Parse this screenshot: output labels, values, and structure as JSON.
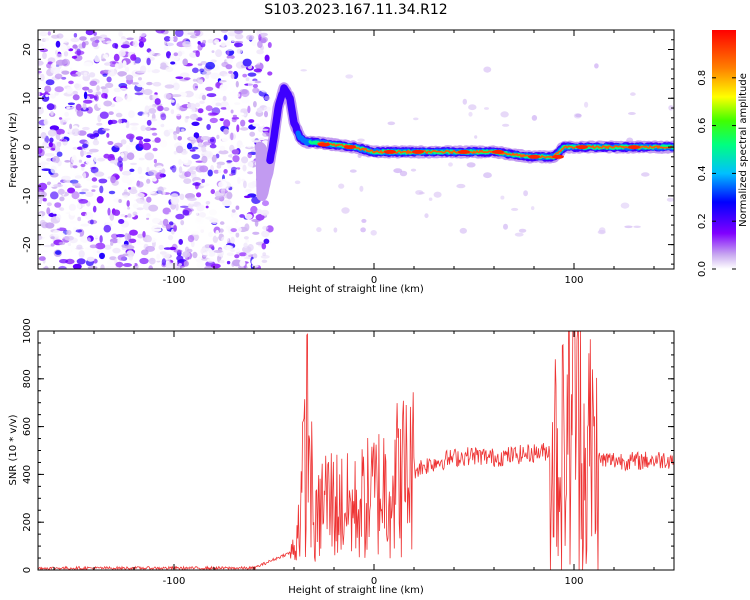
{
  "title": "S103.2023.167.11.34.R12",
  "chart_data": [
    {
      "type": "heatmap",
      "xlabel": "Height of straight line (km)",
      "ylabel": "Frequency (Hz)",
      "xlim": [
        -168,
        150
      ],
      "ylim": [
        -25,
        24
      ],
      "xticks": [
        -100,
        0,
        100
      ],
      "yticks": [
        -20,
        -10,
        0,
        10,
        20
      ],
      "colorbar": {
        "label": "Normalized spectral amplitude",
        "range": [
          0.0,
          1.0
        ],
        "ticks": [
          "0.0",
          "0.2",
          "0.4",
          "0.6",
          "0.8"
        ],
        "colormap": [
          "#ffffff",
          "#c8a8f0",
          "#8000ff",
          "#0000ff",
          "#00c0ff",
          "#00ff80",
          "#40ff00",
          "#ffff00",
          "#ff8000",
          "#ff0000"
        ]
      },
      "ridge": {
        "description_points": [
          [
            -56,
            -10
          ],
          [
            -53,
            -5
          ],
          [
            -50,
            2
          ],
          [
            -48,
            8
          ],
          [
            -45,
            12
          ],
          [
            -42,
            10
          ],
          [
            -40,
            5
          ],
          [
            -37,
            2
          ],
          [
            -34,
            1
          ],
          [
            -30,
            1
          ],
          [
            -20,
            0.5
          ],
          [
            -10,
            0
          ],
          [
            0,
            -1
          ],
          [
            20,
            -1
          ],
          [
            40,
            -1
          ],
          [
            60,
            -1
          ],
          [
            78,
            -2
          ],
          [
            90,
            -2
          ],
          [
            95,
            0
          ],
          [
            100,
            0
          ],
          [
            110,
            0
          ],
          [
            130,
            0
          ],
          [
            150,
            0
          ]
        ],
        "noise_x_range": [
          -168,
          -56
        ]
      }
    },
    {
      "type": "line",
      "xlabel": "Height of straight line (km)",
      "ylabel": "SNR (10 * v/v)",
      "xlim": [
        -168,
        150
      ],
      "ylim": [
        0,
        1000
      ],
      "xticks": [
        -100,
        0,
        100
      ],
      "yticks": [
        0,
        200,
        400,
        600,
        800,
        1000
      ],
      "color": "#ee3333",
      "series": [
        {
          "x": [
            -168,
            -60,
            -40,
            -36,
            -33,
            -30,
            -25,
            -20,
            -10,
            0,
            10,
            20,
            30,
            40,
            50,
            60,
            70,
            80,
            90,
            95,
            98,
            100,
            102,
            104,
            106,
            108,
            110,
            120,
            130,
            140,
            150
          ],
          "y": [
            8,
            8,
            80,
            300,
            640,
            150,
            300,
            280,
            250,
            320,
            380,
            420,
            450,
            470,
            480,
            470,
            480,
            490,
            500,
            480,
            700,
            800,
            990,
            750,
            300,
            550,
            460,
            460,
            455,
            460,
            465
          ]
        }
      ]
    }
  ]
}
